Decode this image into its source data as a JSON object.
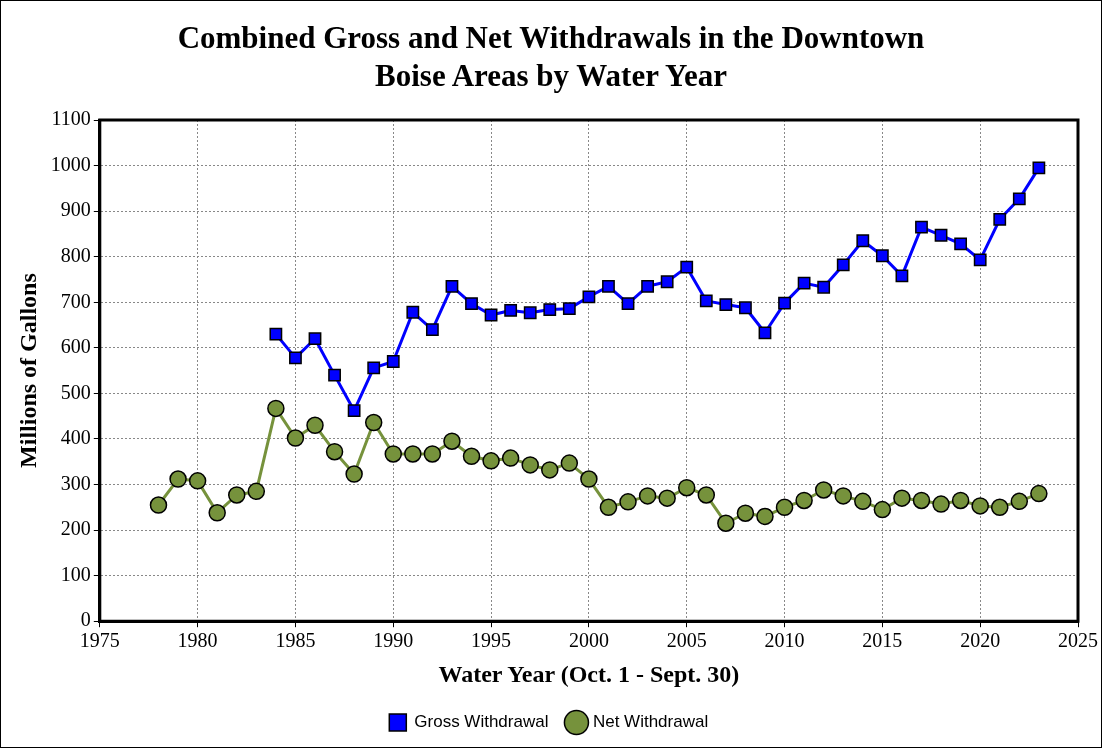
{
  "chart_data": {
    "type": "line",
    "title": "Combined Gross and Net Withdrawals in the Downtown Boise Areas by Water Year",
    "xlabel": "Water Year (Oct. 1 - Sept. 30)",
    "ylabel": "Millions of Gallons",
    "xlim": [
      1975,
      2025
    ],
    "xticks": [
      1975,
      1980,
      1985,
      1990,
      1995,
      2000,
      2005,
      2010,
      2015,
      2020,
      2025
    ],
    "ylim": [
      0,
      1100
    ],
    "yticks": [
      0,
      100,
      200,
      300,
      400,
      500,
      600,
      700,
      800,
      900,
      1000,
      1100
    ],
    "grid": true,
    "legend": "bottom",
    "line_style": "solid",
    "series": [
      {
        "name": "Gross Withdrawal",
        "color": "#0000ff",
        "marker": "square",
        "x": [
          1984,
          1985,
          1986,
          1987,
          1988,
          1989,
          1990,
          1991,
          1992,
          1993,
          1994,
          1995,
          1996,
          1997,
          1998,
          1999,
          2000,
          2001,
          2002,
          2003,
          2004,
          2005,
          2006,
          2007,
          2008,
          2009,
          2010,
          2011,
          2012,
          2013,
          2014,
          2015,
          2016,
          2017,
          2018,
          2019,
          2020,
          2021,
          2022,
          2023
        ],
        "values": [
          630,
          578,
          620,
          540,
          462,
          556,
          570,
          678,
          640,
          735,
          697,
          672,
          682,
          677,
          684,
          686,
          712,
          735,
          697,
          735,
          745,
          777,
          703,
          695,
          688,
          633,
          698,
          742,
          733,
          782,
          835,
          802,
          758,
          865,
          847,
          828,
          793,
          882,
          927,
          995
        ]
      },
      {
        "name": "Net Withdrawal",
        "color": "#76923c",
        "marker": "circle",
        "x": [
          1978,
          1979,
          1980,
          1981,
          1982,
          1983,
          1984,
          1985,
          1986,
          1987,
          1988,
          1989,
          1990,
          1991,
          1992,
          1993,
          1994,
          1995,
          1996,
          1997,
          1998,
          1999,
          2000,
          2001,
          2002,
          2003,
          2004,
          2005,
          2006,
          2007,
          2008,
          2009,
          2010,
          2011,
          2012,
          2013,
          2014,
          2015,
          2016,
          2017,
          2018,
          2019,
          2020,
          2021,
          2022,
          2023
        ],
        "values": [
          255,
          312,
          308,
          238,
          277,
          285,
          467,
          402,
          430,
          372,
          323,
          436,
          367,
          367,
          367,
          395,
          362,
          352,
          358,
          343,
          332,
          347,
          312,
          250,
          262,
          275,
          270,
          293,
          277,
          215,
          237,
          230,
          250,
          265,
          288,
          275,
          263,
          245,
          270,
          265,
          257,
          265,
          253,
          250,
          263,
          280
        ]
      }
    ]
  }
}
